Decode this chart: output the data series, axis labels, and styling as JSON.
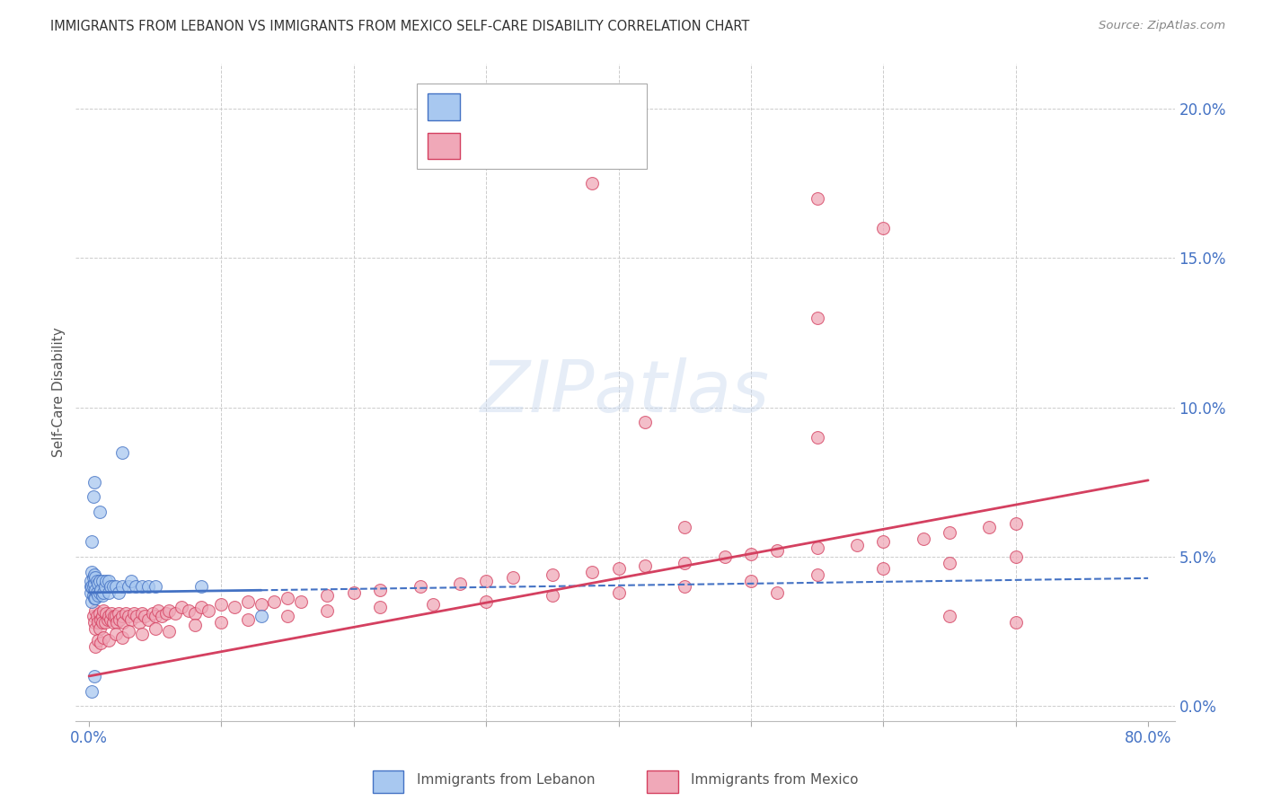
{
  "title": "IMMIGRANTS FROM LEBANON VS IMMIGRANTS FROM MEXICO SELF-CARE DISABILITY CORRELATION CHART",
  "source": "Source: ZipAtlas.com",
  "ylabel": "Self-Care Disability",
  "xlim": [
    0.0,
    0.8
  ],
  "ylim": [
    0.0,
    0.21
  ],
  "color_lebanon": "#a8c8f0",
  "color_mexico": "#f0a8b8",
  "color_line_lebanon": "#4472c4",
  "color_line_mexico": "#d44060",
  "color_text_blue": "#4472c4",
  "lebanon_x": [
    0.001,
    0.001,
    0.001,
    0.002,
    0.002,
    0.002,
    0.003,
    0.003,
    0.003,
    0.004,
    0.004,
    0.004,
    0.005,
    0.005,
    0.005,
    0.006,
    0.006,
    0.007,
    0.007,
    0.008,
    0.008,
    0.009,
    0.01,
    0.01,
    0.011,
    0.012,
    0.013,
    0.015,
    0.015,
    0.016,
    0.018,
    0.02,
    0.022,
    0.025,
    0.03,
    0.032,
    0.035,
    0.04,
    0.045,
    0.05,
    0.004,
    0.008,
    0.025,
    0.085,
    0.13,
    0.002,
    0.003,
    0.002,
    0.004
  ],
  "lebanon_y": [
    0.038,
    0.04,
    0.042,
    0.035,
    0.04,
    0.045,
    0.037,
    0.04,
    0.043,
    0.036,
    0.041,
    0.044,
    0.036,
    0.039,
    0.043,
    0.038,
    0.042,
    0.037,
    0.041,
    0.038,
    0.042,
    0.039,
    0.037,
    0.042,
    0.038,
    0.04,
    0.042,
    0.038,
    0.042,
    0.04,
    0.04,
    0.04,
    0.038,
    0.04,
    0.04,
    0.042,
    0.04,
    0.04,
    0.04,
    0.04,
    0.075,
    0.065,
    0.085,
    0.04,
    0.03,
    0.055,
    0.07,
    0.005,
    0.01
  ],
  "mexico_x": [
    0.003,
    0.004,
    0.005,
    0.005,
    0.006,
    0.007,
    0.008,
    0.008,
    0.009,
    0.01,
    0.01,
    0.011,
    0.012,
    0.013,
    0.014,
    0.015,
    0.016,
    0.017,
    0.018,
    0.019,
    0.02,
    0.021,
    0.022,
    0.023,
    0.025,
    0.026,
    0.028,
    0.03,
    0.032,
    0.034,
    0.036,
    0.038,
    0.04,
    0.042,
    0.045,
    0.048,
    0.05,
    0.052,
    0.055,
    0.058,
    0.06,
    0.065,
    0.07,
    0.075,
    0.08,
    0.085,
    0.09,
    0.1,
    0.11,
    0.12,
    0.13,
    0.14,
    0.15,
    0.16,
    0.18,
    0.2,
    0.22,
    0.25,
    0.28,
    0.3,
    0.32,
    0.35,
    0.38,
    0.4,
    0.42,
    0.45,
    0.48,
    0.5,
    0.52,
    0.55,
    0.58,
    0.6,
    0.63,
    0.65,
    0.68,
    0.7,
    0.005,
    0.007,
    0.009,
    0.011,
    0.015,
    0.02,
    0.025,
    0.03,
    0.04,
    0.05,
    0.06,
    0.08,
    0.1,
    0.12,
    0.15,
    0.18,
    0.22,
    0.26,
    0.3,
    0.35,
    0.4,
    0.45,
    0.5,
    0.55,
    0.6,
    0.65,
    0.7,
    0.38,
    0.55,
    0.6,
    0.55,
    0.42,
    0.55,
    0.45,
    0.52,
    0.65,
    0.7
  ],
  "mexico_y": [
    0.03,
    0.028,
    0.032,
    0.026,
    0.03,
    0.028,
    0.031,
    0.026,
    0.029,
    0.03,
    0.028,
    0.032,
    0.028,
    0.031,
    0.029,
    0.03,
    0.029,
    0.031,
    0.028,
    0.03,
    0.03,
    0.028,
    0.031,
    0.029,
    0.03,
    0.028,
    0.031,
    0.03,
    0.029,
    0.031,
    0.03,
    0.028,
    0.031,
    0.03,
    0.029,
    0.031,
    0.03,
    0.032,
    0.03,
    0.031,
    0.032,
    0.031,
    0.033,
    0.032,
    0.031,
    0.033,
    0.032,
    0.034,
    0.033,
    0.035,
    0.034,
    0.035,
    0.036,
    0.035,
    0.037,
    0.038,
    0.039,
    0.04,
    0.041,
    0.042,
    0.043,
    0.044,
    0.045,
    0.046,
    0.047,
    0.048,
    0.05,
    0.051,
    0.052,
    0.053,
    0.054,
    0.055,
    0.056,
    0.058,
    0.06,
    0.061,
    0.02,
    0.022,
    0.021,
    0.023,
    0.022,
    0.024,
    0.023,
    0.025,
    0.024,
    0.026,
    0.025,
    0.027,
    0.028,
    0.029,
    0.03,
    0.032,
    0.033,
    0.034,
    0.035,
    0.037,
    0.038,
    0.04,
    0.042,
    0.044,
    0.046,
    0.048,
    0.05,
    0.175,
    0.17,
    0.16,
    0.13,
    0.095,
    0.09,
    0.06,
    0.038,
    0.03,
    0.028
  ]
}
